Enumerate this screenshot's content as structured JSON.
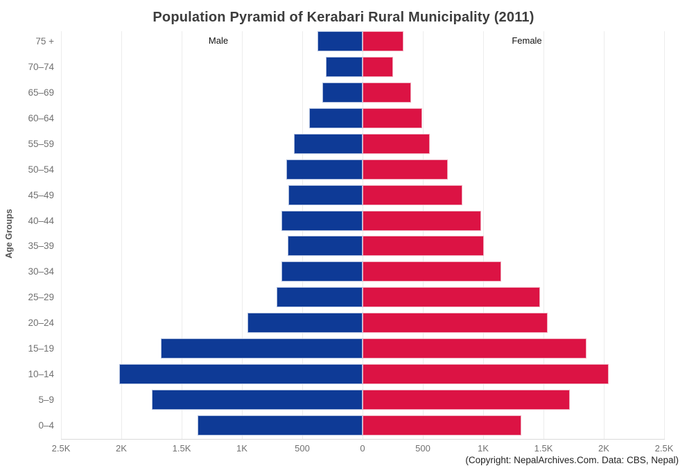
{
  "header": {
    "title": "Population Pyramid of Kerabari Rural Municipality (2011)"
  },
  "footer": {
    "copyright": "(Copyright: NepalArchives.Com. Data: CBS, Nepal)"
  },
  "legend": {
    "male": "Male",
    "female": "Female"
  },
  "axes": {
    "y_title": "Age Groups"
  },
  "colors": {
    "male": "#0e3a96",
    "female": "#dc1344",
    "grid": "#ececec",
    "axis_text": "#707070",
    "title_text": "#3d3d3d"
  },
  "chart_data": {
    "type": "bar",
    "subtype": "population_pyramid",
    "title": "Population Pyramid of Kerabari Rural Municipality (2011)",
    "ylabel": "Age Groups",
    "xlabel": "",
    "grid": true,
    "legend_position": "top-inside",
    "x_axis": {
      "max_each_side": 2500,
      "tick_step": 500,
      "tick_labels": [
        "2.5K",
        "2K",
        "1.5K",
        "1K",
        "500",
        "0",
        "500",
        "1K",
        "1.5K",
        "2K",
        "2.5K"
      ]
    },
    "categories": [
      "75 +",
      "70–74",
      "65–69",
      "60–64",
      "55–59",
      "50–54",
      "45–49",
      "40–44",
      "35–39",
      "30–34",
      "25–29",
      "20–24",
      "15–19",
      "10–14",
      "5–9",
      "0–4"
    ],
    "series": [
      {
        "name": "Male",
        "side": "left",
        "color": "#0e3a96",
        "values": [
          375,
          305,
          335,
          440,
          570,
          630,
          615,
          670,
          620,
          675,
          715,
          955,
          1675,
          2020,
          1745,
          1365
        ]
      },
      {
        "name": "Female",
        "side": "right",
        "color": "#dc1344",
        "values": [
          340,
          250,
          400,
          495,
          555,
          705,
          825,
          985,
          1005,
          1150,
          1470,
          1535,
          1855,
          2040,
          1720,
          1315
        ]
      }
    ]
  }
}
